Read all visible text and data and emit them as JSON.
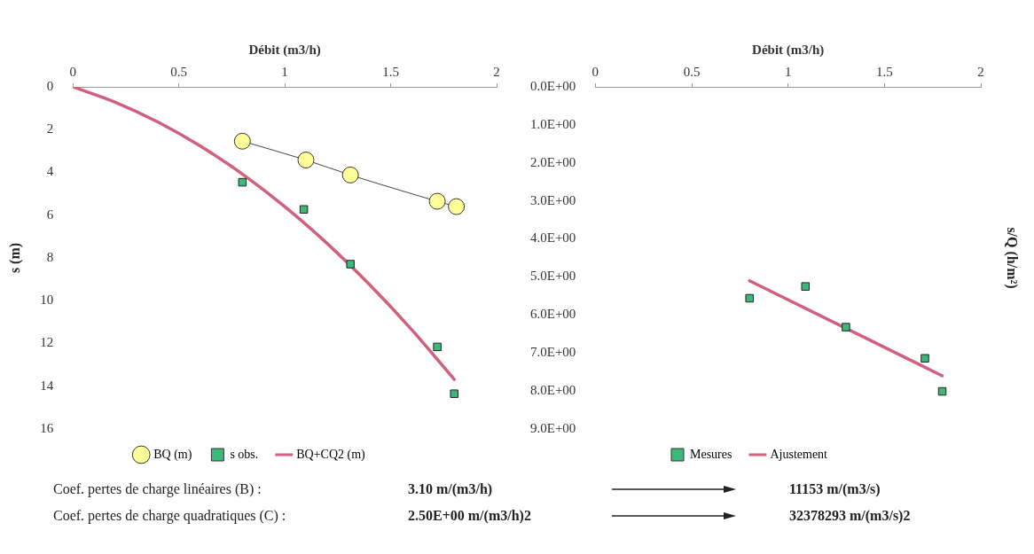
{
  "chart_data": [
    {
      "type": "scatter",
      "xlabel": "Débit (m3/h)",
      "ylabel": "s (m)",
      "xlim": [
        0,
        2
      ],
      "xticks": [
        0,
        0.5,
        1,
        1.5,
        2
      ],
      "ylim": [
        16,
        0
      ],
      "yticks": [
        0,
        2,
        4,
        6,
        8,
        10,
        12,
        14,
        16
      ],
      "legend": "bottom",
      "series": [
        {
          "name": "BQ (m)",
          "type": "line",
          "marker": "circle",
          "color": "#ffff99",
          "x": [
            0.8,
            1.1,
            1.31,
            1.72,
            1.81
          ],
          "values": [
            2.54,
            3.42,
            4.12,
            5.35,
            5.6
          ]
        },
        {
          "name": "s obs.",
          "type": "scatter",
          "marker": "square",
          "color": "#3cb878",
          "x": [
            0.8,
            1.09,
            1.31,
            1.72,
            1.8
          ],
          "values": [
            4.46,
            5.73,
            8.29,
            12.16,
            14.35
          ]
        },
        {
          "name": "BQ+CQ2 (m)",
          "type": "line",
          "marker": "none",
          "color": "#d0607e",
          "x": [
            0,
            0.2,
            0.4,
            0.6,
            0.8,
            1,
            1.2,
            1.4,
            1.6,
            1.8
          ],
          "values": [
            0,
            0.72,
            1.64,
            2.76,
            4.08,
            5.6,
            7.32,
            9.24,
            11.36,
            13.68
          ]
        }
      ]
    },
    {
      "type": "scatter",
      "xlabel": "Débit (m3/h)",
      "ylabel": "s/Q (h/m²)",
      "xlim": [
        0,
        2
      ],
      "xticks": [
        0,
        0.5,
        1,
        1.5,
        2
      ],
      "ylim": [
        9,
        0
      ],
      "yticks": [
        {
          "value": 0,
          "label": "0.0E+00"
        },
        {
          "value": 1,
          "label": "1.0E+00"
        },
        {
          "value": 2,
          "label": "2.0E+00"
        },
        {
          "value": 3,
          "label": "3.0E+00"
        },
        {
          "value": 4,
          "label": "4.0E+00"
        },
        {
          "value": 5,
          "label": "5.0E+00"
        },
        {
          "value": 6,
          "label": "6.0E+00"
        },
        {
          "value": 7,
          "label": "7.0E+00"
        },
        {
          "value": 8,
          "label": "8.0E+00"
        },
        {
          "value": 9,
          "label": "9.0E+00"
        }
      ],
      "legend": "bottom",
      "series": [
        {
          "name": "Mesures",
          "type": "scatter",
          "marker": "square",
          "color": "#3cb878",
          "x": [
            0.8,
            1.09,
            1.3,
            1.71,
            1.8
          ],
          "values": [
            5.56,
            5.25,
            6.32,
            7.14,
            8.01
          ]
        },
        {
          "name": "Ajustement",
          "type": "line",
          "marker": "none",
          "color": "#d0607e",
          "x": [
            0.8,
            1.8
          ],
          "values": [
            5.1,
            7.6
          ]
        }
      ]
    },
    {
      "type": "other",
      "annotations": [
        "Coef. pertes de charge linéaires (B) :",
        "3.10 m/(m3/h)",
        "11153 m/(m3/s)",
        "Coef. pertes de charge quadratiques  (C) :",
        "2.50E+00 m/(m3/h)2",
        "32378293  m/(m3/s)2"
      ]
    }
  ]
}
